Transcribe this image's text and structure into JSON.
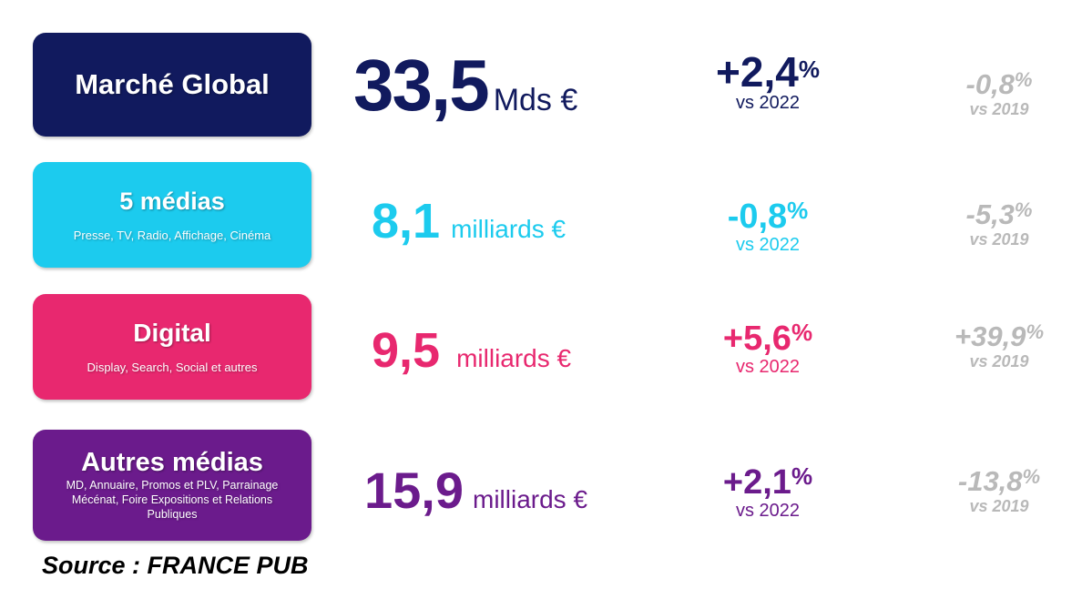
{
  "colors": {
    "global": "#111a5e",
    "medias5": "#1ccbee",
    "digital": "#e8286f",
    "autres": "#6b1b8c",
    "grey": "#b9b9b9"
  },
  "rows": [
    {
      "title": "Marché Global",
      "subtitle": "",
      "value": "33,5",
      "unit": "Mds €",
      "pct_num": "+2,4",
      "pct_sym": "%",
      "vs1": "vs 2022",
      "old_num": "-0,8",
      "old_sym": "%",
      "vs2": "vs 2019"
    },
    {
      "title": "5 médias",
      "subtitle": "Presse, TV, Radio, Affichage, Cinéma",
      "value": "8,1",
      "unit": "milliards €",
      "pct_num": "-0,8",
      "pct_sym": "%",
      "vs1": "vs 2022",
      "old_num": "-5,3",
      "old_sym": "%",
      "vs2": "vs 2019"
    },
    {
      "title": "Digital",
      "subtitle": "Display, Search, Social et autres",
      "value": "9,5",
      "unit": "milliards €",
      "pct_num": "+5,6",
      "pct_sym": "%",
      "vs1": "vs 2022",
      "old_num": "+39,9",
      "old_sym": "%",
      "vs2": "vs 2019"
    },
    {
      "title": "Autres médias",
      "subtitle": "MD, Annuaire, Promos et PLV, Parrainage Mécénat, Foire Expositions et Relations Publiques",
      "value": "15,9",
      "unit": "milliards €",
      "pct_num": "+2,1",
      "pct_sym": "%",
      "vs1": "vs 2022",
      "old_num": "-13,8",
      "old_sym": "%",
      "vs2": "vs 2019"
    }
  ],
  "source": "Source : FRANCE PUB"
}
